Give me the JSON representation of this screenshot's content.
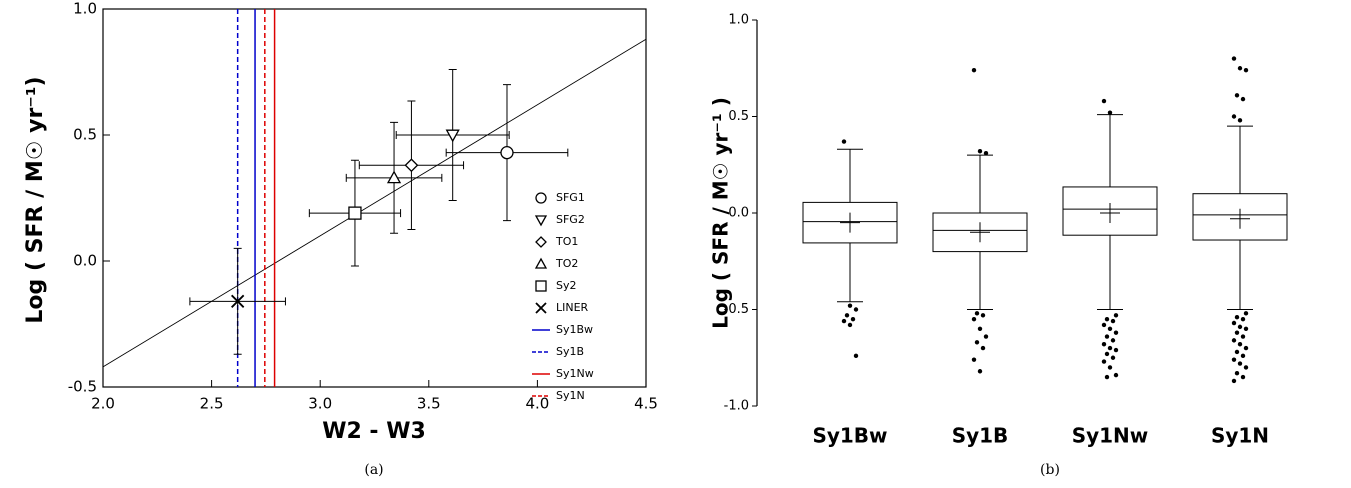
{
  "chart_data": [
    {
      "type": "scatter",
      "caption": "(a)",
      "x_label": "W2 - W3",
      "y_label": "Log ( SFR / M☉ yr⁻¹)",
      "xlim": [
        2.0,
        4.5
      ],
      "ylim": [
        -0.5,
        1.0
      ],
      "xticks": [
        {
          "value": 2.0,
          "label": "2.0"
        },
        2.5,
        {
          "value": 3.0,
          "label": "3.0"
        },
        3.5,
        {
          "value": 4.0,
          "label": "4.0"
        },
        4.5
      ],
      "yticks": [
        -0.5,
        {
          "value": 0.0,
          "label": "0.0"
        },
        0.5,
        {
          "value": 1.0,
          "label": "1.0"
        }
      ],
      "series": [
        {
          "name": "SFG1",
          "marker": "circle",
          "x": 3.86,
          "y": 0.43,
          "xerr": 0.28,
          "yerr": 0.27
        },
        {
          "name": "SFG2",
          "marker": "triangle-down",
          "x": 3.61,
          "y": 0.5,
          "xerr": 0.26,
          "yerr": 0.26
        },
        {
          "name": "TO1",
          "marker": "diamond",
          "x": 3.42,
          "y": 0.38,
          "xerr": 0.24,
          "yerr": 0.255
        },
        {
          "name": "TO2",
          "marker": "triangle-up",
          "x": 3.34,
          "y": 0.33,
          "xerr": 0.22,
          "yerr": 0.22
        },
        {
          "name": "Sy2",
          "marker": "square",
          "x": 3.16,
          "y": 0.19,
          "xerr": 0.21,
          "yerr": 0.21
        },
        {
          "name": "LINER",
          "marker": "x",
          "x": 2.62,
          "y": -0.16,
          "xerr": 0.22,
          "yerr": 0.21
        }
      ],
      "vlines": [
        {
          "name": "Sy1Bw",
          "x": 2.7,
          "color": "#0000cc",
          "dashed": false
        },
        {
          "name": "Sy1B",
          "x": 2.62,
          "color": "#0000cc",
          "dashed": true
        },
        {
          "name": "Sy1Nw",
          "x": 2.79,
          "color": "#dd0000",
          "dashed": false
        },
        {
          "name": "Sy1N",
          "x": 2.745,
          "color": "#dd0000",
          "dashed": true
        }
      ],
      "fit_line": {
        "x": [
          2.0,
          4.5
        ],
        "y": [
          -0.42,
          0.88
        ]
      }
    },
    {
      "type": "box",
      "caption": "(b)",
      "y_label": "Log ( SFR / M☉ yr⁻¹ )",
      "ylim": [
        -1.0,
        1.0
      ],
      "yticks": [
        {
          "value": -1.0,
          "label": "-1.0"
        },
        -0.5,
        {
          "value": 0.0,
          "label": "0.0"
        },
        0.5,
        {
          "value": 1.0,
          "label": "1.0"
        }
      ],
      "categories": [
        "Sy1Bw",
        "Sy1B",
        "Sy1Nw",
        "Sy1N"
      ],
      "boxes": [
        {
          "whisker_low": -0.46,
          "q1": -0.155,
          "median": -0.045,
          "q3": 0.055,
          "whisker_high": 0.33,
          "mean": -0.05,
          "outliers": [
            0.37,
            -0.48,
            -0.5,
            -0.53,
            -0.55,
            -0.56,
            -0.58,
            -0.74
          ]
        },
        {
          "whisker_low": -0.5,
          "q1": -0.2,
          "median": -0.09,
          "q3": 0.0,
          "whisker_high": 0.3,
          "mean": -0.1,
          "outliers": [
            0.74,
            0.32,
            0.31,
            -0.52,
            -0.53,
            -0.55,
            -0.6,
            -0.64,
            -0.67,
            -0.7,
            -0.76,
            -0.82
          ]
        },
        {
          "whisker_low": -0.5,
          "q1": -0.115,
          "median": 0.02,
          "q3": 0.135,
          "whisker_high": 0.51,
          "mean": 0.0,
          "outliers": [
            0.58,
            0.52,
            -0.53,
            -0.55,
            -0.56,
            -0.58,
            -0.6,
            -0.62,
            -0.64,
            -0.66,
            -0.68,
            -0.7,
            -0.71,
            -0.73,
            -0.75,
            -0.77,
            -0.8,
            -0.84,
            -0.85
          ]
        },
        {
          "whisker_low": -0.5,
          "q1": -0.14,
          "median": -0.01,
          "q3": 0.1,
          "whisker_high": 0.45,
          "mean": -0.03,
          "outliers": [
            0.8,
            0.75,
            0.74,
            0.61,
            0.59,
            0.5,
            0.48,
            -0.52,
            -0.54,
            -0.55,
            -0.57,
            -0.59,
            -0.6,
            -0.62,
            -0.64,
            -0.66,
            -0.68,
            -0.7,
            -0.72,
            -0.74,
            -0.76,
            -0.78,
            -0.8,
            -0.83,
            -0.85,
            -0.87
          ]
        }
      ]
    }
  ]
}
